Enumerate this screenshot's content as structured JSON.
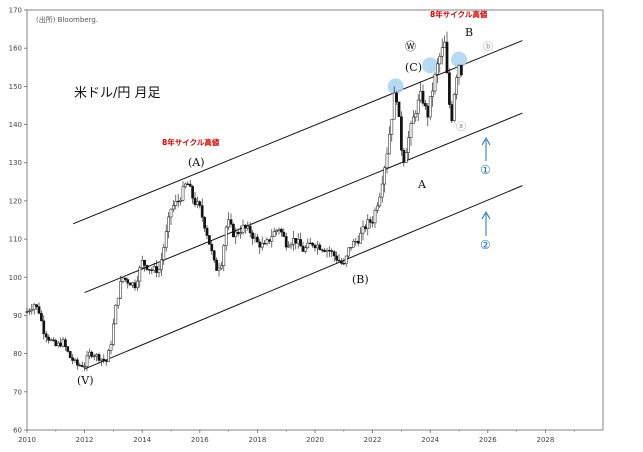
{
  "source": "(出所) Bloomberg.",
  "chart_data": {
    "type": "candlestick",
    "title": "米ドル/円 月足",
    "xlim": [
      2010,
      2030
    ],
    "ylim": [
      60,
      170
    ],
    "x_ticks": [
      "2010",
      "2012",
      "2014",
      "2016",
      "2018",
      "2020",
      "2022",
      "2024",
      "2026",
      "2028"
    ],
    "y_ticks": [
      "60",
      "70",
      "80",
      "90",
      "100",
      "110",
      "120",
      "130",
      "140",
      "150",
      "160",
      "170"
    ],
    "prices": [
      [
        2010.0,
        91
      ],
      [
        2010.25,
        93
      ],
      [
        2010.42,
        91
      ],
      [
        2010.58,
        86
      ],
      [
        2010.75,
        84
      ],
      [
        2011.0,
        82
      ],
      [
        2011.25,
        83
      ],
      [
        2011.5,
        79
      ],
      [
        2011.75,
        77
      ],
      [
        2012.0,
        77
      ],
      [
        2012.15,
        80
      ],
      [
        2012.3,
        80
      ],
      [
        2012.5,
        79
      ],
      [
        2012.75,
        78
      ],
      [
        2012.9,
        82
      ],
      [
        2013.1,
        93
      ],
      [
        2013.3,
        100
      ],
      [
        2013.5,
        99
      ],
      [
        2013.75,
        98
      ],
      [
        2014.0,
        104
      ],
      [
        2014.3,
        102
      ],
      [
        2014.6,
        102
      ],
      [
        2014.8,
        110
      ],
      [
        2015.0,
        118
      ],
      [
        2015.25,
        120
      ],
      [
        2015.45,
        123
      ],
      [
        2015.55,
        125
      ],
      [
        2015.8,
        120
      ],
      [
        2016.0,
        118
      ],
      [
        2016.2,
        113
      ],
      [
        2016.4,
        107
      ],
      [
        2016.55,
        102
      ],
      [
        2016.75,
        104
      ],
      [
        2016.95,
        115
      ],
      [
        2017.2,
        111
      ],
      [
        2017.5,
        113
      ],
      [
        2017.75,
        112
      ],
      [
        2018.0,
        109
      ],
      [
        2018.25,
        108
      ],
      [
        2018.5,
        111
      ],
      [
        2018.75,
        113
      ],
      [
        2019.0,
        109
      ],
      [
        2019.3,
        110
      ],
      [
        2019.6,
        107
      ],
      [
        2019.9,
        109
      ],
      [
        2020.2,
        108
      ],
      [
        2020.5,
        107
      ],
      [
        2020.75,
        105
      ],
      [
        2021.0,
        103
      ],
      [
        2021.2,
        108
      ],
      [
        2021.5,
        110
      ],
      [
        2021.8,
        114
      ],
      [
        2022.0,
        115
      ],
      [
        2022.25,
        122
      ],
      [
        2022.5,
        133
      ],
      [
        2022.8,
        150
      ],
      [
        2022.95,
        138
      ],
      [
        2023.05,
        130
      ],
      [
        2023.3,
        138
      ],
      [
        2023.5,
        144
      ],
      [
        2023.7,
        148
      ],
      [
        2023.9,
        142
      ],
      [
        2024.1,
        150
      ],
      [
        2024.3,
        157
      ],
      [
        2024.5,
        161
      ],
      [
        2024.65,
        146
      ],
      [
        2024.75,
        142
      ],
      [
        2024.85,
        150
      ],
      [
        2024.95,
        155
      ],
      [
        2025.05,
        157
      ],
      [
        2025.15,
        148
      ]
    ],
    "channel_lines": [
      {
        "from": [
          2011.6,
          114
        ],
        "to": [
          2027.2,
          162
        ]
      },
      {
        "from": [
          2012.0,
          96
        ],
        "to": [
          2027.2,
          143
        ]
      },
      {
        "from": [
          2012.0,
          76
        ],
        "to": [
          2027.2,
          124
        ]
      }
    ],
    "annotations": {
      "cycle_high_1": "8年サイクル高値",
      "cycle_high_2": "8年サイクル高値",
      "wave_V": "(V)",
      "wave_A_paren": "(A)",
      "wave_B_paren": "(B)",
      "wave_C_paren": "(C)",
      "wave_W": "Ⓦ",
      "wave_A": "A",
      "wave_B": "B",
      "wave_a": "ⓐ",
      "wave_b": "ⓑ",
      "target_1": "①",
      "target_2": "②"
    },
    "colors": {
      "candle": "#111111",
      "highlight": "#a9d4ee",
      "blue": "#1a73b8",
      "red": "#cc0000"
    }
  }
}
